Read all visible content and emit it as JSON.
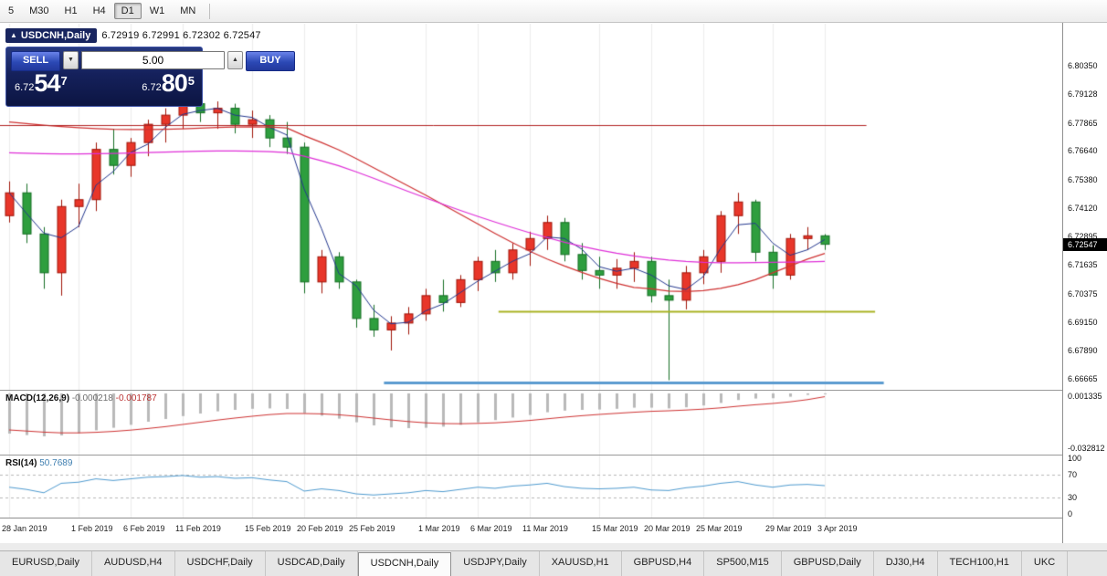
{
  "toolbar": {
    "timeframes": [
      {
        "label": "5",
        "active": false
      },
      {
        "label": "M30",
        "active": false
      },
      {
        "label": "H1",
        "active": false
      },
      {
        "label": "H4",
        "active": false
      },
      {
        "label": "D1",
        "active": true
      },
      {
        "label": "W1",
        "active": false
      },
      {
        "label": "MN",
        "active": false
      }
    ]
  },
  "chart": {
    "title": "USDCNH,Daily",
    "collapse_icon": "▲",
    "ohlc_label": "6.72919 6.72991 6.72302 6.72547"
  },
  "trade_panel": {
    "sell_label": "SELL",
    "buy_label": "BUY",
    "volume": "5.00",
    "spinner_down": "▼",
    "spinner_up": "▲",
    "bid": {
      "prefix": "6.72",
      "big": "54",
      "sup": "7"
    },
    "ask": {
      "prefix": "6.72",
      "big": "80",
      "sup": "5"
    }
  },
  "indicators": {
    "macd": {
      "label": "MACD(12,26,9)",
      "value_main": "-0.000218",
      "value_signal": "-0.001787",
      "scale_top": "0.001335",
      "scale_bottom": "-0.032812"
    },
    "rsi": {
      "label": "RSI(14)",
      "value": "50.7689",
      "scale": [
        "100",
        "70",
        "30",
        "0"
      ],
      "levels": [
        70,
        30
      ]
    }
  },
  "price_axis": {
    "ticks": [
      "6.80350",
      "6.79128",
      "6.77865",
      "6.76640",
      "6.75380",
      "6.74120",
      "6.72895",
      "6.71635",
      "6.70375",
      "6.69150",
      "6.67890",
      "6.66665"
    ],
    "current": "6.72547"
  },
  "date_axis": [
    {
      "label": "28 Jan 2019",
      "index": 0
    },
    {
      "label": "1 Feb 2019",
      "index": 4
    },
    {
      "label": "6 Feb 2019",
      "index": 7
    },
    {
      "label": "11 Feb 2019",
      "index": 10
    },
    {
      "label": "15 Feb 2019",
      "index": 14
    },
    {
      "label": "20 Feb 2019",
      "index": 17
    },
    {
      "label": "25 Feb 2019",
      "index": 20
    },
    {
      "label": "1 Mar 2019",
      "index": 24
    },
    {
      "label": "6 Mar 2019",
      "index": 27
    },
    {
      "label": "11 Mar 2019",
      "index": 30
    },
    {
      "label": "15 Mar 2019",
      "index": 34
    },
    {
      "label": "20 Mar 2019",
      "index": 37
    },
    {
      "label": "25 Mar 2019",
      "index": 40
    },
    {
      "label": "29 Mar 2019",
      "index": 44
    },
    {
      "label": "3 Apr 2019",
      "index": 47
    }
  ],
  "tabs": {
    "items": [
      {
        "label": "EURUSD,Daily",
        "active": false
      },
      {
        "label": "AUDUSD,H4",
        "active": false
      },
      {
        "label": "USDCHF,Daily",
        "active": false
      },
      {
        "label": "USDCAD,Daily",
        "active": false
      },
      {
        "label": "USDCNH,Daily",
        "active": true
      },
      {
        "label": "USDJPY,Daily",
        "active": false
      },
      {
        "label": "XAUUSD,H1",
        "active": false
      },
      {
        "label": "GBPUSD,H4",
        "active": false
      },
      {
        "label": "SP500,M15",
        "active": false
      },
      {
        "label": "GBPUSD,Daily",
        "active": false
      },
      {
        "label": "DJ30,H4",
        "active": false
      },
      {
        "label": "TECH100,H1",
        "active": false
      },
      {
        "label": "UKC",
        "active": false
      }
    ]
  },
  "chart_data": {
    "type": "candlestick",
    "symbol": "USDCNH",
    "timeframe": "Daily",
    "current_price": 6.72547,
    "price_axis": {
      "max_price": 6.822,
      "min_price": 6.6618
    },
    "colors": {
      "bull_fill": "#e8362a",
      "bull_stroke": "#a01408",
      "bear_fill": "#2e9e3e",
      "bear_stroke": "#156e23",
      "ma_fast": "#24388f",
      "ma_mid": "#cf3333",
      "ma_slow": "#df2fd8",
      "grid": "#ededed",
      "macd_hist": "#b9b9b9",
      "macd_signal": "#cf3333",
      "rsi_line": "#4f9bd0",
      "rsi_level": "#b8b8b8"
    },
    "hlines": [
      {
        "name": "resistance-line",
        "price": 6.7775,
        "color": "#b22222",
        "width": 1,
        "from_index": -0.6,
        "to_index": 49.4
      },
      {
        "name": "support-line-olive",
        "price": 6.696,
        "color": "#a9b323",
        "width": 2,
        "from_index": 28.2,
        "to_index": 49.9
      },
      {
        "name": "support-line-blue",
        "price": 6.665,
        "color": "#5b9bd0",
        "width": 3,
        "from_index": 21.6,
        "to_index": 50.4
      }
    ],
    "candles": [
      [
        "28 Jan",
        6.738,
        6.753,
        6.735,
        6.748
      ],
      [
        "29 Jan",
        6.748,
        6.752,
        6.726,
        6.73
      ],
      [
        "30 Jan",
        6.73,
        6.733,
        6.706,
        6.713
      ],
      [
        "31 Jan",
        6.713,
        6.745,
        6.703,
        6.742
      ],
      [
        "1 Feb",
        6.742,
        6.752,
        6.733,
        6.745
      ],
      [
        "4 Feb",
        6.745,
        6.77,
        6.74,
        6.767
      ],
      [
        "5 Feb",
        6.767,
        6.776,
        6.756,
        6.76
      ],
      [
        "6 Feb",
        6.76,
        6.772,
        6.755,
        6.77
      ],
      [
        "7 Feb",
        6.77,
        6.78,
        6.764,
        6.778
      ],
      [
        "8 Feb",
        6.778,
        6.785,
        6.77,
        6.782
      ],
      [
        "11 Feb",
        6.782,
        6.79,
        6.776,
        6.787
      ],
      [
        "12 Feb",
        6.787,
        6.791,
        6.779,
        6.783
      ],
      [
        "13 Feb",
        6.783,
        6.788,
        6.776,
        6.785
      ],
      [
        "14 Feb",
        6.785,
        6.787,
        6.774,
        6.778
      ],
      [
        "15 Feb",
        6.778,
        6.784,
        6.772,
        6.78
      ],
      [
        "18 Feb",
        6.78,
        6.782,
        6.768,
        6.772
      ],
      [
        "19 Feb",
        6.772,
        6.779,
        6.765,
        6.768
      ],
      [
        "20 Feb",
        6.768,
        6.77,
        6.704,
        6.709
      ],
      [
        "21 Feb",
        6.709,
        6.723,
        6.704,
        6.72
      ],
      [
        "22 Feb",
        6.72,
        6.722,
        6.706,
        6.709
      ],
      [
        "25 Feb",
        6.709,
        6.71,
        6.689,
        6.693
      ],
      [
        "26 Feb",
        6.693,
        6.699,
        6.685,
        6.688
      ],
      [
        "27 Feb",
        6.688,
        6.694,
        6.679,
        6.691
      ],
      [
        "28 Feb",
        6.691,
        6.698,
        6.686,
        6.695
      ],
      [
        "1 Mar",
        6.695,
        6.706,
        6.692,
        6.703
      ],
      [
        "4 Mar",
        6.703,
        6.71,
        6.696,
        6.7
      ],
      [
        "5 Mar",
        6.7,
        6.712,
        6.698,
        6.71
      ],
      [
        "6 Mar",
        6.71,
        6.72,
        6.705,
        6.718
      ],
      [
        "7 Mar",
        6.718,
        6.723,
        6.709,
        6.713
      ],
      [
        "8 Mar",
        6.713,
        6.726,
        6.71,
        6.723
      ],
      [
        "11 Mar",
        6.723,
        6.731,
        6.716,
        6.728
      ],
      [
        "12 Mar",
        6.728,
        6.738,
        6.723,
        6.735
      ],
      [
        "13 Mar",
        6.735,
        6.737,
        6.718,
        6.721
      ],
      [
        "14 Mar",
        6.721,
        6.726,
        6.71,
        6.714
      ],
      [
        "15 Mar",
        6.714,
        6.72,
        6.706,
        6.712
      ],
      [
        "18 Mar",
        6.712,
        6.719,
        6.706,
        6.715
      ],
      [
        "19 Mar",
        6.715,
        6.722,
        6.709,
        6.718
      ],
      [
        "20 Mar",
        6.718,
        6.72,
        6.7,
        6.703
      ],
      [
        "21 Mar",
        6.703,
        6.71,
        6.666,
        6.701
      ],
      [
        "22 Mar",
        6.701,
        6.716,
        6.697,
        6.713
      ],
      [
        "25 Mar",
        6.713,
        6.723,
        6.708,
        6.72
      ],
      [
        "26 Mar",
        6.718,
        6.74,
        6.713,
        6.738
      ],
      [
        "27 Mar",
        6.738,
        6.748,
        6.73,
        6.744
      ],
      [
        "28 Mar",
        6.744,
        6.745,
        6.718,
        6.722
      ],
      [
        "29 Mar",
        6.722,
        6.725,
        6.706,
        6.712
      ],
      [
        "1 Apr",
        6.712,
        6.73,
        6.71,
        6.728
      ],
      [
        "2 Apr",
        6.728,
        6.733,
        6.723,
        6.7292
      ],
      [
        "3 Apr",
        6.72919,
        6.72991,
        6.72302,
        6.72547
      ]
    ],
    "ma_mid_red": [
      6.779,
      6.7783,
      6.7776,
      6.777,
      6.7765,
      6.7761,
      6.7758,
      6.7757,
      6.7757,
      6.7758,
      6.776,
      6.7763,
      6.7766,
      6.7768,
      6.7769,
      6.7768,
      6.7764,
      6.773,
      6.77,
      6.7668,
      6.763,
      6.759,
      6.755,
      6.751,
      6.747,
      6.7428,
      6.7386,
      6.7344,
      6.7302,
      6.7262,
      6.7224,
      6.719,
      6.716,
      6.7132,
      6.7106,
      6.7084,
      6.7066,
      6.706,
      6.705,
      6.7048,
      6.7052,
      6.7062,
      6.7078,
      6.71,
      6.713,
      6.716,
      6.719,
      6.7215
    ],
    "ma_slow_magenta": [
      6.7655,
      6.7653,
      6.7651,
      6.765,
      6.765,
      6.7651,
      6.7652,
      6.7654,
      6.7656,
      6.7658,
      6.766,
      6.7662,
      6.7663,
      6.7663,
      6.7662,
      6.766,
      6.7656,
      6.764,
      6.762,
      6.7598,
      6.7572,
      6.7544,
      6.7515,
      6.7486,
      6.7458,
      6.743,
      6.7403,
      6.7377,
      6.7352,
      6.7328,
      6.7305,
      6.7284,
      6.7264,
      6.7246,
      6.723,
      6.7216,
      6.7204,
      6.7194,
      6.7186,
      6.718,
      6.7176,
      6.7174,
      6.7174,
      6.7175,
      6.7176,
      6.7177,
      6.7178,
      6.718
    ],
    "macd": {
      "range": {
        "max": 0.0015,
        "min": -0.0335
      },
      "main": [
        -0.022,
        -0.0228,
        -0.0235,
        -0.023,
        -0.0218,
        -0.0202,
        -0.0188,
        -0.0172,
        -0.0155,
        -0.014,
        -0.0124,
        -0.011,
        -0.0098,
        -0.009,
        -0.0084,
        -0.0082,
        -0.0085,
        -0.0108,
        -0.0122,
        -0.0138,
        -0.0158,
        -0.0175,
        -0.0186,
        -0.019,
        -0.0188,
        -0.0182,
        -0.0172,
        -0.0158,
        -0.0146,
        -0.0132,
        -0.0118,
        -0.0103,
        -0.0094,
        -0.009,
        -0.0088,
        -0.0084,
        -0.0078,
        -0.0078,
        -0.0082,
        -0.0076,
        -0.0066,
        -0.0052,
        -0.0036,
        -0.0028,
        -0.0026,
        -0.0018,
        -0.0008,
        -0.000218
      ],
      "signal": [
        -0.02,
        -0.0206,
        -0.0212,
        -0.0216,
        -0.0216,
        -0.0213,
        -0.0208,
        -0.0201,
        -0.0192,
        -0.0182,
        -0.017,
        -0.0158,
        -0.0146,
        -0.0135,
        -0.0125,
        -0.0116,
        -0.011,
        -0.011,
        -0.0112,
        -0.0117,
        -0.0125,
        -0.0135,
        -0.0145,
        -0.0154,
        -0.0161,
        -0.0165,
        -0.0166,
        -0.0164,
        -0.0161,
        -0.0155,
        -0.0148,
        -0.0139,
        -0.013,
        -0.0122,
        -0.0115,
        -0.0109,
        -0.0103,
        -0.0098,
        -0.0095,
        -0.0091,
        -0.0086,
        -0.0079,
        -0.007,
        -0.0062,
        -0.0055,
        -0.0046,
        -0.0034,
        -0.001787
      ]
    },
    "rsi_values": [
      48,
      44,
      38,
      55,
      57,
      63,
      60,
      63,
      66,
      67,
      69,
      66,
      67,
      64,
      65,
      61,
      58,
      41,
      45,
      42,
      36,
      34,
      36,
      38,
      42,
      40,
      44,
      48,
      46,
      50,
      52,
      55,
      49,
      46,
      45,
      46,
      48,
      43,
      42,
      47,
      50,
      55,
      58,
      52,
      48,
      52,
      53,
      50.7689
    ]
  }
}
